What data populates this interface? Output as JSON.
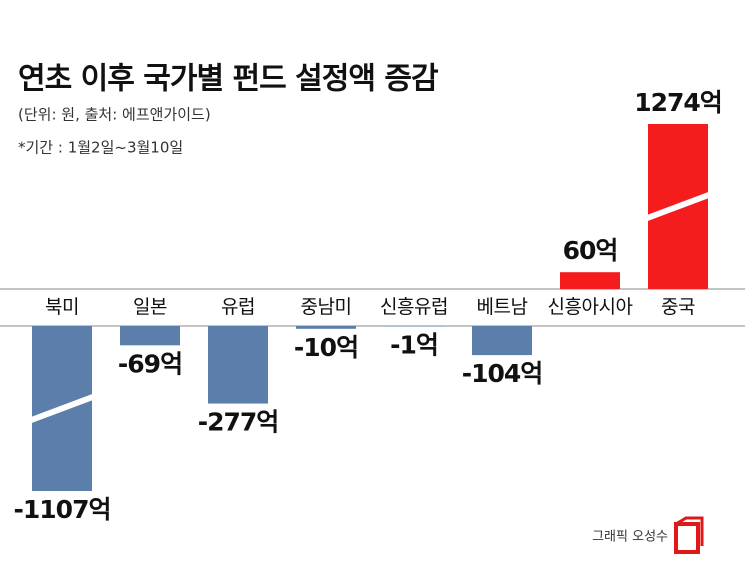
{
  "chart_data": {
    "type": "bar",
    "title": "연초 이후 국가별 펀드 설정액 증감",
    "subtitle": "(단위: 원, 출처: 에프앤가이드)",
    "note": "*기간 : 1월2일~3월10일",
    "categories": [
      "북미",
      "일본",
      "유럽",
      "중남미",
      "신흥유럽",
      "베트남",
      "신흥아시아",
      "중국"
    ],
    "values": [
      -1107,
      -69,
      -277,
      -10,
      -1,
      -104,
      60,
      1274
    ],
    "value_labels": [
      "-1107억",
      "-69억",
      "-277억",
      "-10억",
      "-1억",
      "-104억",
      "60억",
      "1274억"
    ],
    "positive_color": "#f41c1c",
    "negative_color": "#5b7faa"
  },
  "credit": "그래픽 오성수"
}
